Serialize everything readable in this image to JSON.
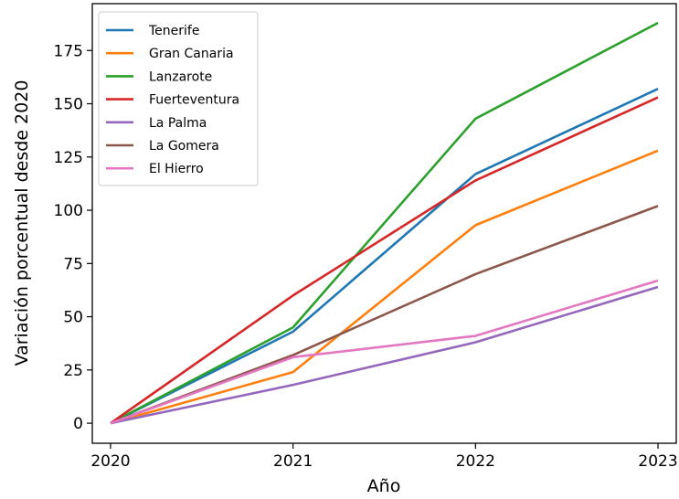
{
  "chart_data": {
    "type": "line",
    "xlabel": "Año",
    "ylabel": "Variación porcentual desde 2020",
    "x": [
      2020,
      2021,
      2022,
      2023
    ],
    "xlim": [
      2019.9,
      2023.1
    ],
    "ylim": [
      -9.4,
      197
    ],
    "yticks": [
      0,
      25,
      50,
      75,
      100,
      125,
      150,
      175
    ],
    "grid": false,
    "legend_position": "top-left",
    "series": [
      {
        "name": "Tenerife",
        "color": "#1f77b4",
        "values": [
          0,
          43,
          117,
          157
        ]
      },
      {
        "name": "Gran Canaria",
        "color": "#ff7f0e",
        "values": [
          0,
          24,
          93,
          128
        ]
      },
      {
        "name": "Lanzarote",
        "color": "#2ca02c",
        "values": [
          0,
          45,
          143,
          188
        ]
      },
      {
        "name": "Fuerteventura",
        "color": "#d62728",
        "values": [
          0,
          60,
          114,
          153
        ]
      },
      {
        "name": "La Palma",
        "color": "#9467bd",
        "values": [
          0,
          18,
          38,
          64
        ]
      },
      {
        "name": "La Gomera",
        "color": "#8c564b",
        "values": [
          0,
          32,
          70,
          102
        ]
      },
      {
        "name": "El Hierro",
        "color": "#e377c2",
        "values": [
          0,
          31,
          41,
          67
        ]
      }
    ]
  }
}
